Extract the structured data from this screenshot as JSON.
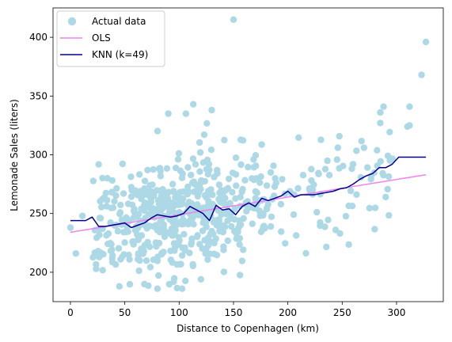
{
  "chart_data": {
    "type": "scatter",
    "xlabel": "Distance to Copenhagen (km)",
    "ylabel": "Lemonade Sales (liters)",
    "xlim": [
      -16,
      343
    ],
    "ylim": [
      175,
      425
    ],
    "xticks": [
      0,
      50,
      100,
      150,
      200,
      250,
      300
    ],
    "yticks": [
      200,
      250,
      300,
      350,
      400
    ],
    "legend_position": "top-left",
    "grid": false,
    "colors": {
      "scatter": "#add8e6",
      "ols": "#ee82ee",
      "knn": "#00008b"
    },
    "series": [
      {
        "name": "Actual data",
        "kind": "scatter",
        "seed": 7,
        "n": 620,
        "x_model": "mixture: most points 20-180 km centered ~100; sparse tail 180-330",
        "y_model": "approx linear 234 + 0.15x with noise sd ~25",
        "highlighted_points": [
          {
            "x": 150,
            "y": 415
          },
          {
            "x": 327,
            "y": 396
          },
          {
            "x": 323,
            "y": 368
          },
          {
            "x": 288,
            "y": 341
          },
          {
            "x": 312,
            "y": 341
          },
          {
            "x": 285,
            "y": 336
          },
          {
            "x": 285,
            "y": 327
          },
          {
            "x": 310,
            "y": 324
          },
          {
            "x": 312,
            "y": 325
          },
          {
            "x": 113,
            "y": 343
          },
          {
            "x": 130,
            "y": 338
          },
          {
            "x": 90,
            "y": 335
          },
          {
            "x": 45,
            "y": 188
          },
          {
            "x": 95,
            "y": 192
          },
          {
            "x": 120,
            "y": 194
          },
          {
            "x": 0,
            "y": 238
          },
          {
            "x": 5,
            "y": 216
          },
          {
            "x": 11,
            "y": 248
          },
          {
            "x": 246,
            "y": 306
          },
          {
            "x": 270,
            "y": 306
          },
          {
            "x": 290,
            "y": 264
          },
          {
            "x": 248,
            "y": 233
          },
          {
            "x": 244,
            "y": 236
          },
          {
            "x": 260,
            "y": 292
          }
        ]
      },
      {
        "name": "OLS",
        "kind": "line",
        "x": [
          0,
          327
        ],
        "y": [
          234,
          283
        ]
      },
      {
        "name": "KNN (k=49)",
        "kind": "line",
        "x": [
          0,
          7,
          14,
          20,
          26,
          32,
          38,
          44,
          50,
          56,
          62,
          68,
          74,
          80,
          86,
          92,
          98,
          104,
          110,
          116,
          122,
          128,
          134,
          140,
          146,
          152,
          158,
          164,
          170,
          176,
          182,
          188,
          194,
          200,
          206,
          212,
          218,
          224,
          230,
          236,
          242,
          248,
          254,
          260,
          266,
          272,
          278,
          284,
          290,
          296,
          302,
          308,
          314,
          320,
          327
        ],
        "y": [
          244,
          244,
          244,
          247,
          239,
          239,
          240,
          241,
          242,
          238,
          240,
          242,
          246,
          249,
          248,
          247,
          248,
          250,
          256,
          253,
          250,
          244,
          257,
          253,
          254,
          249,
          256,
          259,
          256,
          263,
          261,
          263,
          265,
          269,
          264,
          266,
          266,
          266,
          267,
          268,
          269,
          271,
          272,
          275,
          279,
          282,
          284,
          289,
          289,
          292,
          298,
          298,
          298,
          298,
          298
        ]
      }
    ]
  }
}
